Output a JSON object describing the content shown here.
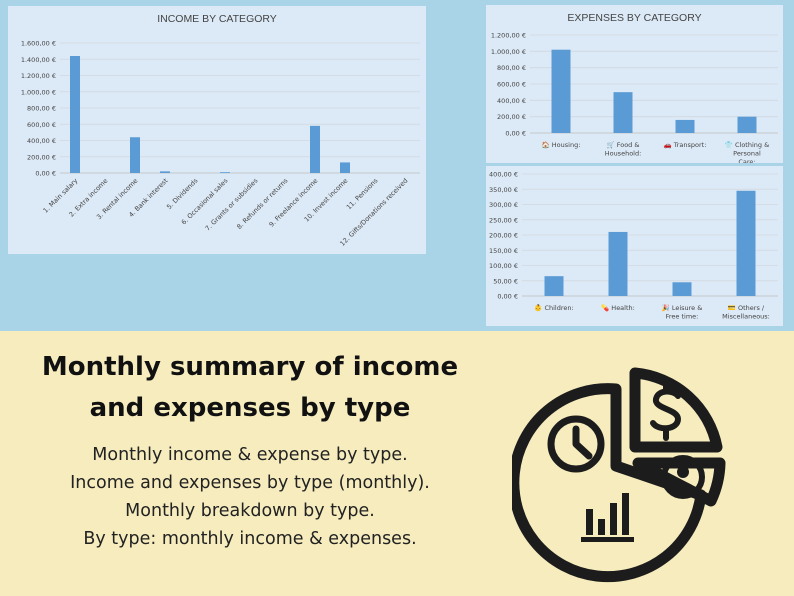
{
  "headline": {
    "line1": "Monthly summary of income",
    "line2": "and expenses by type"
  },
  "sublines": [
    "Monthly income & expense by type.",
    "Income and expenses by type (monthly).",
    "Monthly breakdown by type.",
    "By type: monthly income & expenses."
  ],
  "icon": "pie-chart-clock-dollar-person-bars-icon",
  "colors": {
    "bar": "#5b9bd5",
    "panel": "#dce9f6",
    "top_bg": "#a9d3e7",
    "bottom_bg": "#f6ecbe"
  },
  "chart_data": [
    {
      "id": "income",
      "type": "bar",
      "title": "INCOME BY CATEGORY",
      "categories": [
        "1. Main salary",
        "2. Extra income",
        "3. Rental income",
        "4. Bank interest",
        "5. Dividends",
        "6. Occasional sales",
        "7. Grants or subsidies",
        "8. Refunds or returns",
        "9. Freelance income",
        "10. Invest income",
        "11. Pensions",
        "12. Gifts/Donations received"
      ],
      "values": [
        1440,
        0,
        440,
        20,
        0,
        10,
        0,
        0,
        580,
        130,
        0,
        0
      ],
      "ylim": [
        0,
        1600
      ],
      "yticks": [
        "0,00 €",
        "200,00 €",
        "400,00 €",
        "600,00 €",
        "800,00 €",
        "1.000,00 €",
        "1.200,00 €",
        "1.400,00 €",
        "1.600,00 €"
      ],
      "grid": true
    },
    {
      "id": "expenses1",
      "type": "bar",
      "title": "EXPENSES BY CATEGORY",
      "categories": [
        "🏠 Housing:",
        "🛒 Food & Household:",
        "🚗 Transport:",
        "👕 Clothing & Personal Care:"
      ],
      "values": [
        1020,
        500,
        160,
        200
      ],
      "ylim": [
        0,
        1200
      ],
      "yticks": [
        "0,00 €",
        "200,00 €",
        "400,00 €",
        "600,00 €",
        "800,00 €",
        "1.000,00 €",
        "1.200,00 €"
      ],
      "grid": true
    },
    {
      "id": "expenses2",
      "type": "bar",
      "title": "",
      "categories": [
        "👶 Children:",
        "💊 Health:",
        "🎉 Leisure & Free time:",
        "💳 Others / Miscellaneous:"
      ],
      "values": [
        65,
        210,
        45,
        345
      ],
      "ylim": [
        0,
        400
      ],
      "yticks": [
        "0,00 €",
        "50,00 €",
        "100,00 €",
        "150,00 €",
        "200,00 €",
        "250,00 €",
        "300,00 €",
        "350,00 €",
        "400,00 €"
      ],
      "grid": true
    }
  ]
}
